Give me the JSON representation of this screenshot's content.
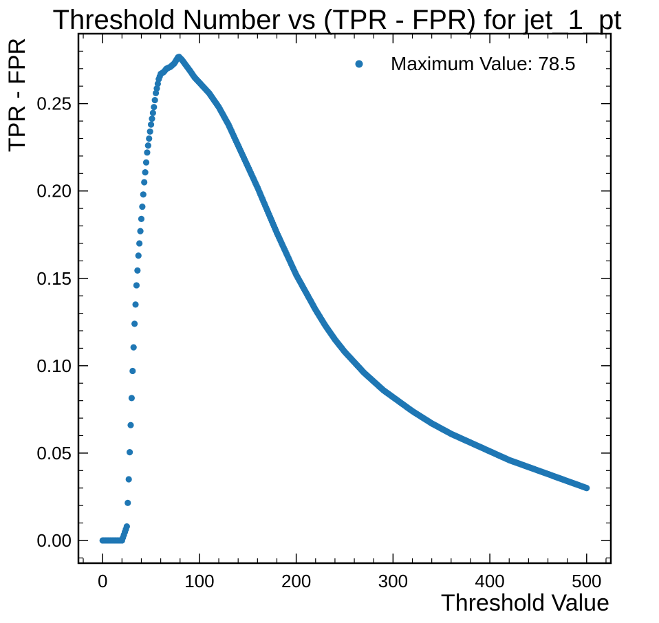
{
  "chart_data": {
    "type": "scatter",
    "title": "Threshold Number vs (TPR - FPR) for jet_1_pt",
    "xlabel": "Threshold Value",
    "ylabel": "TPR - FPR",
    "xlim": [
      -25,
      525
    ],
    "ylim": [
      -0.013,
      0.29
    ],
    "x_ticks": [
      0,
      100,
      200,
      300,
      400,
      500
    ],
    "x_tick_labels": [
      "0",
      "100",
      "200",
      "300",
      "400",
      "500"
    ],
    "y_ticks": [
      0.0,
      0.05,
      0.1,
      0.15,
      0.2,
      0.25
    ],
    "y_tick_labels": [
      "0.00",
      "0.05",
      "0.10",
      "0.15",
      "0.20",
      "0.25"
    ],
    "grid": false,
    "legend_position": "top-right",
    "marker_color": "#1f77b4",
    "series": [
      {
        "name": "Maximum Value: 78.5",
        "x_range": [
          0,
          500
        ],
        "x_step": 1,
        "key_points": {
          "x": [
            0,
            20,
            25,
            27,
            29,
            31,
            33,
            35,
            37,
            40,
            43,
            46,
            50,
            53,
            55,
            58,
            60,
            63,
            66,
            70,
            74,
            78.5,
            82,
            86,
            90,
            95,
            100,
            110,
            120,
            130,
            140,
            150,
            160,
            170,
            180,
            190,
            200,
            210,
            220,
            230,
            240,
            250,
            260,
            270,
            280,
            290,
            300,
            320,
            340,
            360,
            380,
            400,
            420,
            440,
            460,
            480,
            500
          ],
          "y": [
            0.0,
            0.0,
            0.008,
            0.035,
            0.066,
            0.097,
            0.124,
            0.146,
            0.163,
            0.184,
            0.205,
            0.222,
            0.238,
            0.248,
            0.256,
            0.264,
            0.267,
            0.268,
            0.27,
            0.271,
            0.273,
            0.277,
            0.275,
            0.272,
            0.269,
            0.265,
            0.262,
            0.256,
            0.248,
            0.238,
            0.226,
            0.214,
            0.202,
            0.189,
            0.176,
            0.164,
            0.152,
            0.142,
            0.132,
            0.123,
            0.115,
            0.108,
            0.102,
            0.096,
            0.091,
            0.086,
            0.082,
            0.074,
            0.067,
            0.061,
            0.056,
            0.051,
            0.046,
            0.042,
            0.038,
            0.034,
            0.03
          ]
        }
      }
    ]
  }
}
